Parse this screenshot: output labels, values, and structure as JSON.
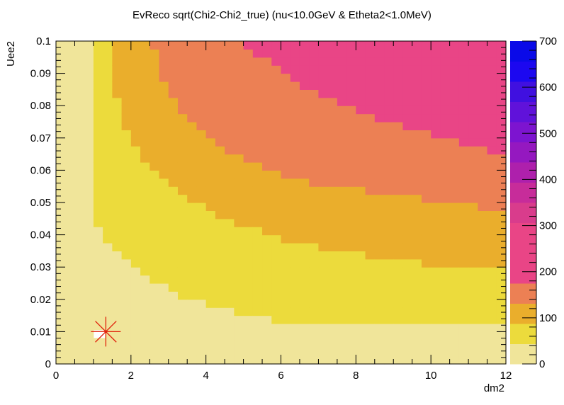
{
  "chart_data": {
    "type": "heatmap",
    "title": "EvReco sqrt(Chi2-Chi2_true) (nu<10.0GeV & Etheta2<1.0MeV)",
    "xlabel": "dm2",
    "ylabel": "Uee2",
    "xlim": [
      0,
      12
    ],
    "ylim": [
      0,
      0.1
    ],
    "zlim": [
      0,
      700
    ],
    "x_ticks": [
      "0",
      "2",
      "4",
      "6",
      "8",
      "10",
      "12"
    ],
    "y_ticks": [
      "0",
      "0.01",
      "0.02",
      "0.03",
      "0.04",
      "0.05",
      "0.06",
      "0.07",
      "0.08",
      "0.09",
      "0.1"
    ],
    "z_ticks": [
      "0",
      "100",
      "200",
      "300",
      "400",
      "500",
      "600",
      "700"
    ],
    "grid": false,
    "bins": {
      "nx": 48,
      "ny": 40
    },
    "contours": [
      {
        "level_min": 0,
        "level_max": 43.75,
        "color": "#f0e59a",
        "boundary": []
      },
      {
        "level_min": 43.75,
        "level_max": 87.5,
        "color": "#ecdb3c",
        "boundary": [
          [
            0.88,
            0.1
          ],
          [
            0.88,
            0.055
          ],
          [
            1.2,
            0.04
          ],
          [
            2.0,
            0.03
          ],
          [
            3.5,
            0.02
          ],
          [
            6.0,
            0.013
          ],
          [
            8.0,
            0.012
          ],
          [
            12.0,
            0.012
          ]
        ]
      },
      {
        "level_min": 87.5,
        "level_max": 131.25,
        "color": "#eaae2c",
        "boundary": [
          [
            1.5,
            0.1
          ],
          [
            1.5,
            0.086
          ],
          [
            2.0,
            0.068
          ],
          [
            3.0,
            0.055
          ],
          [
            4.5,
            0.045
          ],
          [
            6.0,
            0.039
          ],
          [
            8.0,
            0.034
          ],
          [
            10.0,
            0.031
          ],
          [
            12.0,
            0.03
          ]
        ]
      },
      {
        "level_min": 131.25,
        "level_max": 175,
        "color": "#ec8054",
        "boundary": [
          [
            2.55,
            0.1
          ],
          [
            2.8,
            0.09
          ],
          [
            3.3,
            0.079
          ],
          [
            4.0,
            0.07
          ],
          [
            5.0,
            0.063
          ],
          [
            6.5,
            0.057
          ],
          [
            8.0,
            0.054
          ],
          [
            10.0,
            0.051
          ],
          [
            12.0,
            0.0475
          ]
        ]
      },
      {
        "level_min": 175,
        "level_max": 218.75,
        "color": "#e94586",
        "boundary": [
          [
            5.0,
            0.1
          ],
          [
            5.5,
            0.095
          ],
          [
            6.3,
            0.088
          ],
          [
            7.5,
            0.081
          ],
          [
            8.5,
            0.076
          ],
          [
            10.0,
            0.071
          ],
          [
            11.0,
            0.068
          ],
          [
            12.0,
            0.065
          ]
        ]
      }
    ],
    "palette": [
      "#f0e59a",
      "#ecdb3c",
      "#eaae2c",
      "#ec8054",
      "#e94586",
      "#e94586",
      "#e94586",
      "#d93c8c",
      "#c72c9a",
      "#ae20ac",
      "#9518c0",
      "#7d14d0",
      "#6012da",
      "#4010e0",
      "#1c08f0",
      "#0a0ae8",
      "#0a10d0",
      "#0a14a8",
      "#080e80",
      "#060a58",
      "#04062e",
      "#000000"
    ],
    "palette_step": 43.75,
    "marker": {
      "symbol": "star",
      "x": 1.33,
      "y": 0.01,
      "color": "#e0200a",
      "bg_color": "#ffffff"
    }
  }
}
